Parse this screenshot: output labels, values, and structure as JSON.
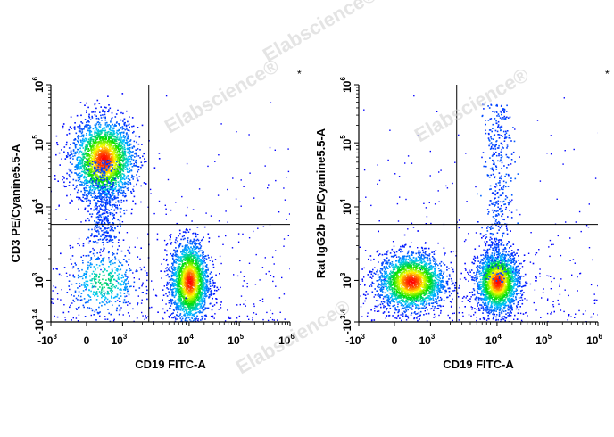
{
  "watermark": "Elabscience®",
  "colors": {
    "low": "#0000ff",
    "mid1": "#00c8ff",
    "mid2": "#00e000",
    "mid3": "#ffff00",
    "high": "#ff0000",
    "gate": "#000000"
  },
  "chart_data": [
    {
      "type": "scatter",
      "subtype": "flow-cytometry-density-dot-plot",
      "xlabel": "CD19 FITC-A",
      "ylabel": "CD3 PE/Cyanine5.5-A",
      "x_scale": "biexponential",
      "y_scale": "biexponential",
      "xlim": [
        "-10^3",
        "10^6"
      ],
      "ylim": [
        "-10^3.4",
        "10^6"
      ],
      "x_ticks": [
        {
          "base": "-10",
          "exp": "3"
        },
        {
          "base": "0",
          "exp": ""
        },
        {
          "base": "10",
          "exp": "3"
        },
        {
          "base": "10",
          "exp": "4"
        },
        {
          "base": "10",
          "exp": "5"
        },
        {
          "base": "10",
          "exp": "6"
        }
      ],
      "y_ticks": [
        {
          "base": "-10",
          "exp": "3.4"
        },
        {
          "base": "10",
          "exp": "3"
        },
        {
          "base": "10",
          "exp": "4"
        },
        {
          "base": "10",
          "exp": "5"
        },
        {
          "base": "10",
          "exp": "6"
        }
      ],
      "quadrant_gate": {
        "x": 2500,
        "y": 5800
      },
      "populations": [
        {
          "x_center": 300,
          "y_center": 55000,
          "density": "high"
        },
        {
          "x_center": 10000,
          "y_center": 900,
          "density": "high"
        },
        {
          "x_center": 300,
          "y_center": 900,
          "density": "low"
        }
      ],
      "annotation": "*"
    },
    {
      "type": "scatter",
      "subtype": "flow-cytometry-density-dot-plot",
      "xlabel": "CD19 FITC-A",
      "ylabel": "Rat IgG2b PE/Cyanine5.5-A",
      "x_scale": "biexponential",
      "y_scale": "biexponential",
      "xlim": [
        "-10^3",
        "10^6"
      ],
      "ylim": [
        "-10^3.4",
        "10^6"
      ],
      "x_ticks": [
        {
          "base": "-10",
          "exp": "3"
        },
        {
          "base": "0",
          "exp": ""
        },
        {
          "base": "10",
          "exp": "3"
        },
        {
          "base": "10",
          "exp": "4"
        },
        {
          "base": "10",
          "exp": "5"
        },
        {
          "base": "10",
          "exp": "6"
        }
      ],
      "y_ticks": [
        {
          "base": "-10",
          "exp": "3.4"
        },
        {
          "base": "10",
          "exp": "3"
        },
        {
          "base": "10",
          "exp": "4"
        },
        {
          "base": "10",
          "exp": "5"
        },
        {
          "base": "10",
          "exp": "6"
        }
      ],
      "quadrant_gate": {
        "x": 2500,
        "y": 5800
      },
      "populations": [
        {
          "x_center": 300,
          "y_center": 900,
          "density": "high"
        },
        {
          "x_center": 10000,
          "y_center": 900,
          "density": "high"
        }
      ],
      "annotation": "*"
    }
  ]
}
